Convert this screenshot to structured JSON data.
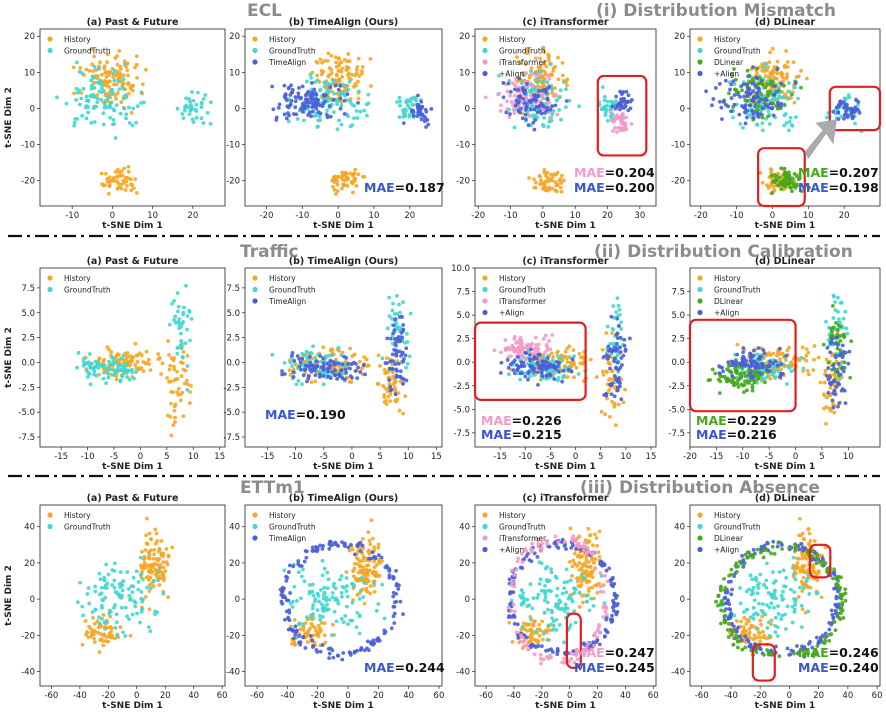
{
  "colors": {
    "history": "#f5a623",
    "groundtruth": "#3fd7d0",
    "timealign": "#4a5ed9",
    "itransformer": "#f49ac8",
    "dlinear": "#44a81c",
    "mae_label_base": "#3a55d6",
    "highlight": "#e02020",
    "separator": "#111111"
  },
  "sections": [
    {
      "dataset": "ECL",
      "subtitle": "(i) Distribution Mismatch"
    },
    {
      "dataset": "Traffic",
      "subtitle": "(ii) Distribution Calibration"
    },
    {
      "dataset": "ETTm1",
      "subtitle": "(iii) Distribution Absence"
    }
  ],
  "chart_data": [
    {
      "type": "scatter",
      "dataset": "ECL",
      "title": "(a) Past & Future",
      "xlabel": "t-SNE Dim 1",
      "ylabel": "t-SNE Dim 2",
      "xlim": [
        -18,
        28
      ],
      "ylim": [
        -27,
        22
      ],
      "xticks": [
        -10,
        0,
        10,
        20
      ],
      "yticks": [
        -20,
        -10,
        0,
        10,
        20
      ],
      "legend": [
        "History",
        "GroundTruth"
      ],
      "mae": []
    },
    {
      "type": "scatter",
      "dataset": "ECL",
      "title": "(b) TimeAlign (Ours)",
      "xlabel": "t-SNE Dim 1",
      "ylabel": "",
      "xlim": [
        -26,
        29
      ],
      "ylim": [
        -27,
        22
      ],
      "xticks": [
        -20,
        -10,
        0,
        10,
        20
      ],
      "yticks": [
        -20,
        -10,
        0,
        10,
        20
      ],
      "legend": [
        "History",
        "GroundTruth",
        "TimeAlign"
      ],
      "mae": [
        {
          "label": "MAE",
          "value": "0.187"
        }
      ]
    },
    {
      "type": "scatter",
      "dataset": "ECL",
      "title": "(c) iTransformer",
      "xlabel": "t-SNE Dim 1",
      "ylabel": "",
      "xlim": [
        -21,
        35
      ],
      "ylim": [
        -27,
        22
      ],
      "xticks": [
        -20,
        -10,
        0,
        10,
        20,
        30
      ],
      "yticks": [
        -20,
        -10,
        0,
        10,
        20
      ],
      "legend": [
        "History",
        "GroundTruth",
        "iTransformer",
        "+Align"
      ],
      "mae": [
        {
          "label": "MAE",
          "value": "0.204"
        },
        {
          "label": "MAE",
          "value": "0.200"
        }
      ]
    },
    {
      "type": "scatter",
      "dataset": "ECL",
      "title": "(d) DLinear",
      "xlabel": "t-SNE Dim 1",
      "ylabel": "",
      "xlim": [
        -23,
        30
      ],
      "ylim": [
        -27,
        22
      ],
      "xticks": [
        -20,
        -10,
        0,
        10,
        20
      ],
      "yticks": [
        -20,
        -10,
        0,
        10,
        20
      ],
      "legend": [
        "History",
        "GroundTruth",
        "DLinear",
        "+Align"
      ],
      "mae": [
        {
          "label": "MAE",
          "value": "0.207"
        },
        {
          "label": "MAE",
          "value": "0.198"
        }
      ]
    },
    {
      "type": "scatter",
      "dataset": "Traffic",
      "title": "(a) Past & Future",
      "xlabel": "t-SNE Dim 1",
      "ylabel": "t-SNE Dim 2",
      "xlim": [
        -19,
        16
      ],
      "ylim": [
        -8.5,
        9.5
      ],
      "xticks": [
        -15,
        -10,
        -5,
        0,
        5,
        10,
        15
      ],
      "yticks": [
        -7.5,
        -5,
        -2.5,
        0,
        2.5,
        5,
        7.5
      ],
      "ytick_labels": [
        "-7.5",
        "-5.0",
        "-2.5",
        "0.0",
        "2.5",
        "5.0",
        "7.5"
      ],
      "legend": [
        "History",
        "GroundTruth"
      ],
      "mae": []
    },
    {
      "type": "scatter",
      "dataset": "Traffic",
      "title": "(b) TimeAlign (Ours)",
      "xlabel": "t-SNE Dim 1",
      "ylabel": "",
      "xlim": [
        -19,
        16
      ],
      "ylim": [
        -8.5,
        9.5
      ],
      "xticks": [
        -15,
        -10,
        -5,
        0,
        5,
        10,
        15
      ],
      "yticks": [
        -7.5,
        -5,
        -2.5,
        0,
        2.5,
        5,
        7.5
      ],
      "ytick_labels": [
        "-7.5",
        "-5.0",
        "-2.5",
        "0.0",
        "2.5",
        "5.0",
        "7.5"
      ],
      "legend": [
        "History",
        "GroundTruth",
        "TimeAlign"
      ],
      "mae": [
        {
          "label": "MAE",
          "value": "0.190"
        }
      ]
    },
    {
      "type": "scatter",
      "dataset": "Traffic",
      "title": "(c) iTransformer",
      "xlabel": "t-SNE Dim 1",
      "ylabel": "",
      "xlim": [
        -20,
        16
      ],
      "ylim": [
        -9,
        10
      ],
      "xticks": [
        -15,
        -10,
        -5,
        0,
        5,
        10,
        15
      ],
      "yticks": [
        -7.5,
        -5,
        -2.5,
        0,
        2.5,
        5,
        7.5,
        10
      ],
      "ytick_labels": [
        "-7.5",
        "-5.0",
        "-2.5",
        "0.0",
        "2.5",
        "5.0",
        "7.5",
        "10.0"
      ],
      "legend": [
        "History",
        "GroundTruth",
        "iTransformer",
        "+Align"
      ],
      "mae": [
        {
          "label": "MAE",
          "value": "0.226"
        },
        {
          "label": "MAE",
          "value": "0.215"
        }
      ]
    },
    {
      "type": "scatter",
      "dataset": "Traffic",
      "title": "(d) DLinear",
      "xlabel": "t-SNE Dim 1",
      "ylabel": "",
      "xlim": [
        -20,
        16
      ],
      "ylim": [
        -9,
        10
      ],
      "xticks": [
        -20,
        -15,
        -10,
        -5,
        0,
        5,
        10
      ],
      "yticks": [
        -7.5,
        -5,
        -2.5,
        0,
        2.5,
        5,
        7.5
      ],
      "ytick_labels": [
        "-7.5",
        "-5.0",
        "-2.5",
        "0.0",
        "2.5",
        "5.0",
        "7.5"
      ],
      "legend": [
        "History",
        "GroundTruth",
        "DLinear",
        "+Align"
      ],
      "mae": [
        {
          "label": "MAE",
          "value": "0.229"
        },
        {
          "label": "MAE",
          "value": "0.216"
        }
      ]
    },
    {
      "type": "scatter",
      "dataset": "ETTm1",
      "title": "(a) Past & Future",
      "xlabel": "t-SNE Dim 1",
      "ylabel": "t-SNE Dim 2",
      "xlim": [
        -68,
        62
      ],
      "ylim": [
        -48,
        52
      ],
      "xticks": [
        -60,
        -40,
        -20,
        0,
        20,
        40,
        60
      ],
      "yticks": [
        -40,
        -20,
        0,
        20,
        40
      ],
      "legend": [
        "History",
        "GroundTruth"
      ],
      "mae": []
    },
    {
      "type": "scatter",
      "dataset": "ETTm1",
      "title": "(b) TimeAlign (Ours)",
      "xlabel": "t-SNE Dim 1",
      "ylabel": "",
      "xlim": [
        -68,
        62
      ],
      "ylim": [
        -48,
        52
      ],
      "xticks": [
        -60,
        -40,
        -20,
        0,
        20,
        40,
        60
      ],
      "yticks": [
        -40,
        -20,
        0,
        20,
        40
      ],
      "legend": [
        "History",
        "GroundTruth",
        "TimeAlign"
      ],
      "mae": [
        {
          "label": "MAE",
          "value": "0.244"
        }
      ]
    },
    {
      "type": "scatter",
      "dataset": "ETTm1",
      "title": "(c) iTransformer",
      "xlabel": "t-SNE Dim 1",
      "ylabel": "",
      "xlim": [
        -68,
        62
      ],
      "ylim": [
        -48,
        52
      ],
      "xticks": [
        -60,
        -40,
        -20,
        0,
        20,
        40,
        60
      ],
      "yticks": [
        -40,
        -20,
        0,
        20,
        40
      ],
      "legend": [
        "History",
        "GroundTruth",
        "iTransformer",
        "+Align"
      ],
      "mae": [
        {
          "label": "MAE",
          "value": "0.247"
        },
        {
          "label": "MAE",
          "value": "0.245"
        }
      ]
    },
    {
      "type": "scatter",
      "dataset": "ETTm1",
      "title": "(d) DLinear",
      "xlabel": "t-SNE Dim 1",
      "ylabel": "",
      "xlim": [
        -68,
        62
      ],
      "ylim": [
        -48,
        52
      ],
      "xticks": [
        -60,
        -40,
        -20,
        0,
        20,
        40,
        60
      ],
      "yticks": [
        -40,
        -20,
        0,
        20,
        40
      ],
      "legend": [
        "History",
        "GroundTruth",
        "DLinear",
        "+Align"
      ],
      "mae": [
        {
          "label": "MAE",
          "value": "0.246"
        },
        {
          "label": "MAE",
          "value": "0.240"
        }
      ]
    }
  ]
}
